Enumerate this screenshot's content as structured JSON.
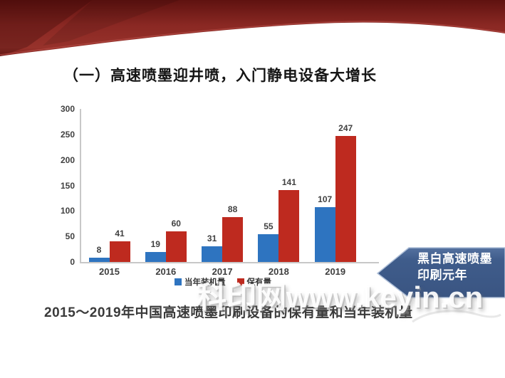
{
  "slide": {
    "title": "（一）高速喷墨迎井喷，入门静电设备大增长",
    "caption": "2015～2019年中国高速喷墨印刷设备的保有量和当年装机量",
    "watermark": "科印网www.keyin.cn",
    "callout": {
      "line1": "黑白高速喷墨",
      "line2": "印刷元年"
    }
  },
  "chart_data": {
    "type": "bar",
    "categories": [
      "2015",
      "2016",
      "2017",
      "2018",
      "2019"
    ],
    "series": [
      {
        "name": "当年装机量",
        "color": "#2E74C0",
        "values": [
          8,
          19,
          31,
          55,
          107
        ]
      },
      {
        "name": "保有量",
        "color": "#BE2A1F",
        "values": [
          41,
          60,
          88,
          141,
          247
        ]
      }
    ],
    "title": "",
    "xlabel": "",
    "ylabel": "",
    "ylim": [
      0,
      300
    ],
    "yticks": [
      0,
      50,
      100,
      150,
      200,
      250,
      300
    ],
    "grid": false,
    "legend_position": "bottom"
  },
  "colors": {
    "bar_blue": "#2E74C0",
    "bar_red": "#BE2A1F",
    "callout_blue": "#3F5C8B",
    "callout_blue_light": "#54719F",
    "ribbon_red": "#8E2A26",
    "ribbon_red_dark": "#5F1210",
    "axis_gray": "#C8C8C8"
  }
}
